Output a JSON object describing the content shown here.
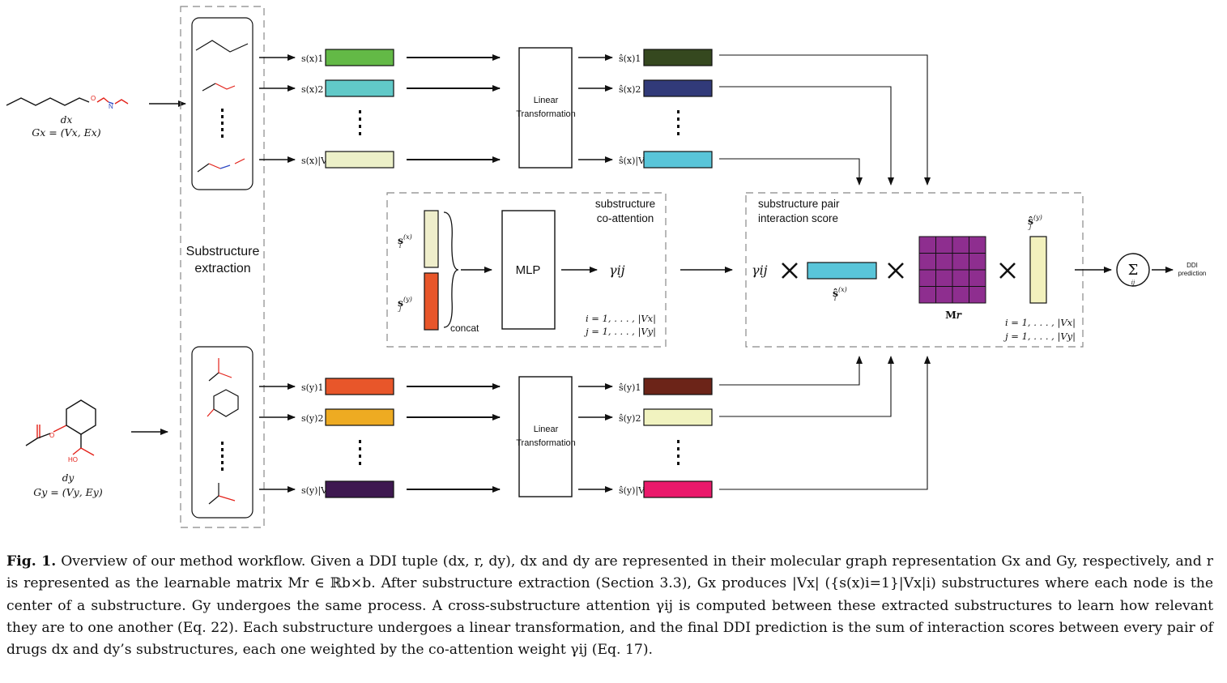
{
  "labels": {
    "drug_x": "d𝑥",
    "graph_x": "G𝑥 = (V𝑥, E𝑥)",
    "drug_y": "d𝑦",
    "graph_y": "G𝑦 = (V𝑦, E𝑦)",
    "substructure_extraction_line1": "Substructure",
    "substructure_extraction_line2": "extraction",
    "linear_transformation_line1": "Linear",
    "linear_transformation_line2": "Transformation",
    "coattention_title_line1": "substructure",
    "coattention_title_line2": "co-attention",
    "mlp": "MLP",
    "concat": "concat",
    "gamma": "γij",
    "si_x": "s(x)i",
    "sj_y": "s(y)j",
    "range_i": "i = 1, . . . , |V𝑥|",
    "range_j": "j = 1, . . . , |V𝑦|",
    "pair_title_line1": "substructure pair",
    "pair_title_line2": "interaction score",
    "hat_si_x": "ŝ(x)i",
    "matrix_label": "M𝑟",
    "hat_sj_y": "ŝ(y)j",
    "sum_symbol": "Σ",
    "sum_sub": "ij",
    "ddi_line1": "DDI",
    "ddi_line2": "prediction",
    "atom_N": "N",
    "atom_O": "O",
    "atom_HO": "HO"
  },
  "rows_x": [
    {
      "in_label": "s(x)1",
      "in_color": "#63b946",
      "out_label": "ŝ(x)1",
      "out_color": "#35481f"
    },
    {
      "in_label": "s(x)2",
      "in_color": "#61c9c8",
      "out_label": "ŝ(x)2",
      "out_color": "#313a79"
    },
    {
      "in_label": "s(x)|Vx|",
      "in_color": "#ecf0c8",
      "out_label": "ŝ(x)|Vx|",
      "out_color": "#59c5d9"
    }
  ],
  "rows_y": [
    {
      "in_label": "s(y)1",
      "in_color": "#e8562a",
      "out_label": "ŝ(y)1",
      "out_color": "#6c2418"
    },
    {
      "in_label": "s(y)2",
      "in_color": "#eeab22",
      "out_label": "ŝ(y)2",
      "out_color": "#f1f3c0"
    },
    {
      "in_label": "s(y)|Vy|",
      "in_color": "#3e1850",
      "out_label": "ŝ(y)|Vy|",
      "out_color": "#ea196b"
    }
  ],
  "colors": {
    "si_bar": "#efeecb",
    "sj_bar": "#e8562a",
    "hat_si_bar": "#59c5d9",
    "hat_sj_bar": "#f2f1bd",
    "matrix": "#8e2e8f",
    "oxygen": "#e32119",
    "nitrogen": "#2c47c3"
  },
  "caption": {
    "fig_label": "Fig. 1.",
    "text": "Overview of our method workflow. Given a DDI tuple (dx, r, dy), dx and dy are represented in their molecular graph representation Gx and Gy, respectively, and r is represented as the learnable matrix Mr ∈ ℝb×b. After substructure extraction (Section 3.3), Gx produces |Vx| ({s(x)i=1}|Vx|i) substructures where each node is the center of a substructure. Gy undergoes the same process. A cross-substructure attention γij is computed between these extracted substructures to learn how relevant they are to one another (Eq. 22). Each substructure undergoes a linear transformation, and the final DDI prediction is the sum of interaction scores between every pair of drugs dx and dy’s substructures, each one weighted by the co-attention weight γij (Eq. 17)."
  }
}
